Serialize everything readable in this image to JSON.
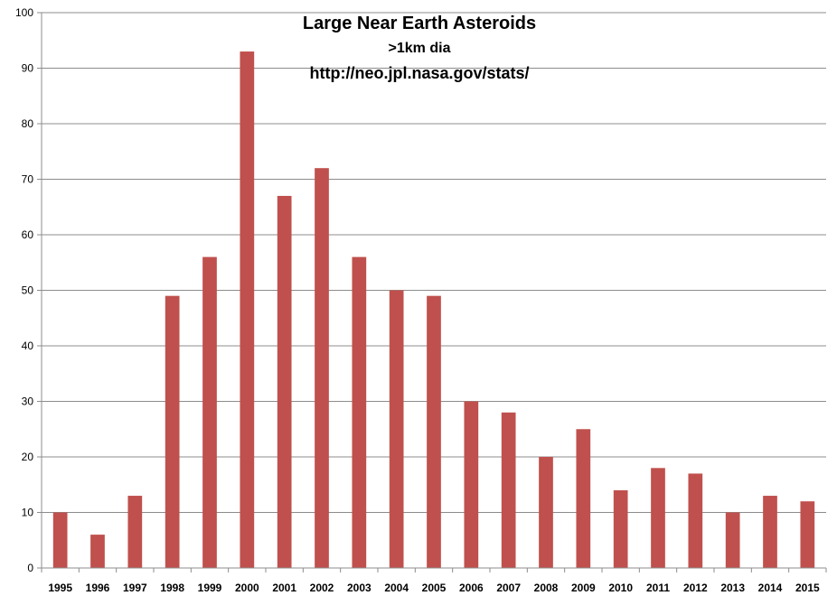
{
  "chart_data": {
    "type": "bar",
    "title": "Large Near Earth Asteroids",
    "subtitle": ">1km dia",
    "source": "http://neo.jpl.nasa.gov/stats/",
    "xlabel": "",
    "ylabel": "",
    "categories": [
      "1995",
      "1996",
      "1997",
      "1998",
      "1999",
      "2000",
      "2001",
      "2002",
      "2003",
      "2004",
      "2005",
      "2006",
      "2007",
      "2008",
      "2009",
      "2010",
      "2011",
      "2012",
      "2013",
      "2014",
      "2015"
    ],
    "series": [
      {
        "values": [
          10,
          6,
          13,
          49,
          56,
          93,
          67,
          72,
          56,
          50,
          49,
          30,
          28,
          20,
          25,
          14,
          18,
          17,
          10,
          13,
          12
        ]
      }
    ],
    "ylim": [
      0,
      100
    ],
    "yticks": [
      0,
      10,
      20,
      30,
      40,
      50,
      60,
      70,
      80,
      90,
      100
    ],
    "grid": true,
    "legend": "none",
    "colors": {
      "bar": "#c0504d",
      "grid": "#8c8c8c",
      "axis": "#8c8c8c"
    }
  }
}
